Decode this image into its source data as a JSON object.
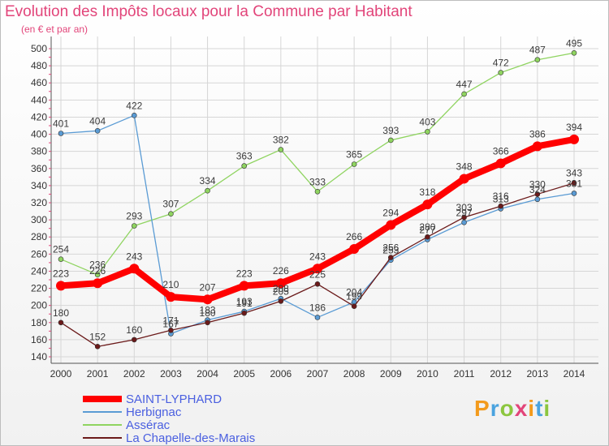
{
  "chart_data": {
    "type": "line",
    "title": "Evolution des Impôts locaux pour la Commune par Habitant",
    "subtitle": "(en € et par an)",
    "xlabel": "",
    "ylabel": "",
    "categories": [
      "2000",
      "2001",
      "2002",
      "2003",
      "2004",
      "2005",
      "2006",
      "2007",
      "2008",
      "2009",
      "2010",
      "2011",
      "2012",
      "2013",
      "2014"
    ],
    "ylim": [
      140,
      500
    ],
    "yticks": [
      140,
      160,
      180,
      200,
      220,
      240,
      260,
      280,
      300,
      320,
      340,
      360,
      380,
      400,
      420,
      440,
      460,
      480,
      500
    ],
    "grid": true,
    "legend_position": "bottom-left",
    "series": [
      {
        "name": "Assérac",
        "color": "#8fd460",
        "values": [
          254,
          236,
          293,
          307,
          334,
          363,
          382,
          333,
          365,
          393,
          403,
          447,
          472,
          487,
          495
        ]
      },
      {
        "name": "Herbignac",
        "color": "#5a9bd4",
        "values": [
          401,
          404,
          422,
          167,
          183,
          193,
          208,
          186,
          204,
          253,
          277,
          297,
          313,
          324,
          331
        ]
      },
      {
        "name": "La Chapelle-des-Marais",
        "color": "#6b1a1a",
        "values": [
          180,
          152,
          160,
          171,
          180,
          191,
          205,
          225,
          199,
          256,
          280,
          303,
          316,
          330,
          343
        ]
      },
      {
        "name": "SAINT-LYPHARD",
        "color": "#ff0000",
        "values": [
          223,
          226,
          243,
          210,
          207,
          223,
          226,
          243,
          266,
          294,
          318,
          348,
          366,
          386,
          394
        ]
      }
    ],
    "legend_order": [
      "SAINT-LYPHARD",
      "Herbignac",
      "Assérac",
      "La Chapelle-des-Marais"
    ]
  },
  "legend": {
    "items": [
      {
        "name": "SAINT-LYPHARD",
        "text_color": "#4a5fe0",
        "line_color": "#ff0000"
      },
      {
        "name": "Herbignac",
        "text_color": "#4a5fe0",
        "line_color": "#5a9bd4"
      },
      {
        "name": "Assérac",
        "text_color": "#4a5fe0",
        "line_color": "#8fd460"
      },
      {
        "name": "La Chapelle-des-Marais",
        "text_color": "#4a5fe0",
        "line_color": "#6b1a1a"
      }
    ]
  },
  "brand": {
    "letters": [
      "P",
      "r",
      "o",
      "x",
      "i",
      "t",
      "i"
    ],
    "colors": [
      "#f39a1c",
      "#4aa3df",
      "#8cc63f",
      "#e2457a",
      "#f39a1c",
      "#4aa3df",
      "#8cc63f"
    ]
  }
}
